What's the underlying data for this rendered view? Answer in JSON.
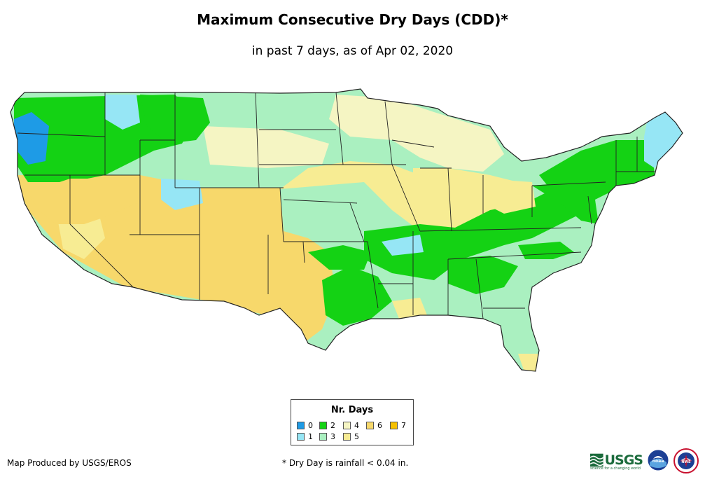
{
  "title": "Maximum Consecutive Dry Days (CDD)*",
  "subtitle": "in past 7 days, as of Apr 02, 2020",
  "legend": {
    "title": "Nr. Days",
    "items": [
      {
        "label": "0",
        "color": "#1e9be6"
      },
      {
        "label": "1",
        "color": "#96e6f5"
      },
      {
        "label": "2",
        "color": "#14d214"
      },
      {
        "label": "3",
        "color": "#aaf0c0"
      },
      {
        "label": "4",
        "color": "#f5f5c3"
      },
      {
        "label": "5",
        "color": "#f7ec93"
      },
      {
        "label": "6",
        "color": "#f7d86b"
      },
      {
        "label": "7",
        "color": "#f5c000"
      }
    ]
  },
  "footer": {
    "credit": "Map Produced by USGS/EROS",
    "note": "* Dry Day is rainfall < 0.04 in."
  },
  "logos": {
    "usgs": "USGS",
    "usgs_tagline": "science for a changing world",
    "noaa": "noaa",
    "nws": "NWS"
  },
  "regions": [
    {
      "name": "pacific-northwest",
      "days": 2
    },
    {
      "name": "washington-coast",
      "days": 0
    },
    {
      "name": "northern-rockies",
      "days": 2
    },
    {
      "name": "northern-plains",
      "days": 3
    },
    {
      "name": "upper-midwest",
      "days": 4
    },
    {
      "name": "great-basin",
      "days": 6
    },
    {
      "name": "desert-southwest",
      "days": 6
    },
    {
      "name": "texas",
      "days": 6
    },
    {
      "name": "central-plains",
      "days": 5
    },
    {
      "name": "ohio-valley",
      "days": 2
    },
    {
      "name": "tennessee-valley",
      "days": 2
    },
    {
      "name": "southeast",
      "days": 3
    },
    {
      "name": "mid-atlantic",
      "days": 2
    },
    {
      "name": "new-england",
      "days": 2
    },
    {
      "name": "maine",
      "days": 1
    },
    {
      "name": "great-lakes",
      "days": 5
    }
  ]
}
